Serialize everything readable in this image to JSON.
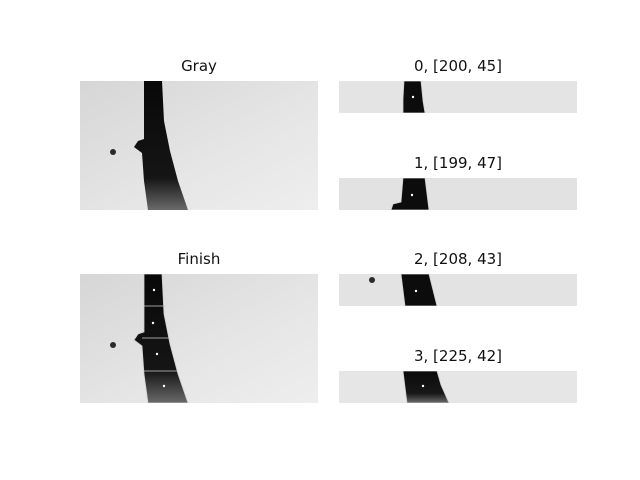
{
  "panels": {
    "gray": {
      "title": "Gray"
    },
    "finish": {
      "title": "Finish"
    },
    "slice_0": {
      "title": "0, [200, 45]"
    },
    "slice_1": {
      "title": "1, [199, 47]"
    },
    "slice_2": {
      "title": "2, [208, 43]"
    },
    "slice_3": {
      "title": "3, [225, 42]"
    }
  },
  "colors": {
    "background": "#ffffff",
    "image_bg": "#e2e2e2",
    "object": "#0e0e0e",
    "contour": "#d0d0d0",
    "centroid": "#ffffff"
  }
}
